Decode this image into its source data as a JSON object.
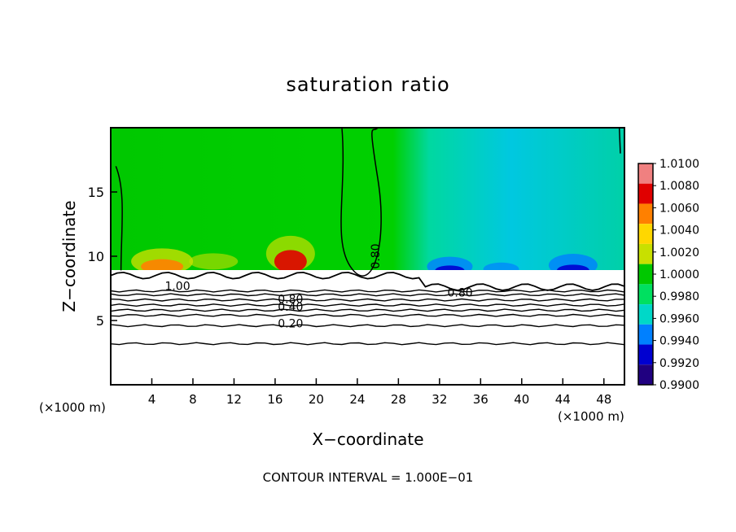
{
  "chart_data": {
    "type": "heatmap",
    "title": "saturation ratio",
    "xlabel": "X−coordinate",
    "ylabel": "Z−coordinate",
    "x_unit_left": "(×1000 m)",
    "x_unit_right": "(×1000 m)",
    "xlim": [
      0,
      50
    ],
    "ylim": [
      0,
      20
    ],
    "x_ticks": [
      4,
      8,
      12,
      16,
      20,
      24,
      28,
      32,
      36,
      40,
      44,
      48
    ],
    "y_ticks": [
      5,
      10,
      15
    ],
    "colorbar_labels": [
      "1.0100",
      "1.0080",
      "1.0060",
      "1.0040",
      "1.0020",
      "1.0000",
      "0.9980",
      "0.9960",
      "0.9940",
      "0.9920",
      "0.9900"
    ],
    "colorbar_colors": [
      "#f08080",
      "#e00000",
      "#ff8000",
      "#ffd700",
      "#c8e000",
      "#00c800",
      "#00e060",
      "#00d8c8",
      "#0080ff",
      "#0000d0",
      "#200080"
    ],
    "contour_labels": [
      {
        "text": "1.00",
        "x": 6.5,
        "y": 7.5
      },
      {
        "text": "0.80",
        "x": 17.5,
        "y": 6.5
      },
      {
        "text": "0.40",
        "x": 17.5,
        "y": 5.9
      },
      {
        "text": "0.20",
        "x": 17.5,
        "y": 4.6
      },
      {
        "text": "0.80",
        "x": 34.0,
        "y": 7.0
      },
      {
        "text": "0.80",
        "x": 26.0,
        "y": 10.0
      }
    ],
    "contour_levels_below": [
      7.3,
      7.0,
      6.6,
      6.2,
      5.8,
      5.4,
      4.6,
      3.2
    ],
    "cloud_base": 8.5,
    "footer": "CONTOUR INTERVAL = 1.000E−01"
  }
}
